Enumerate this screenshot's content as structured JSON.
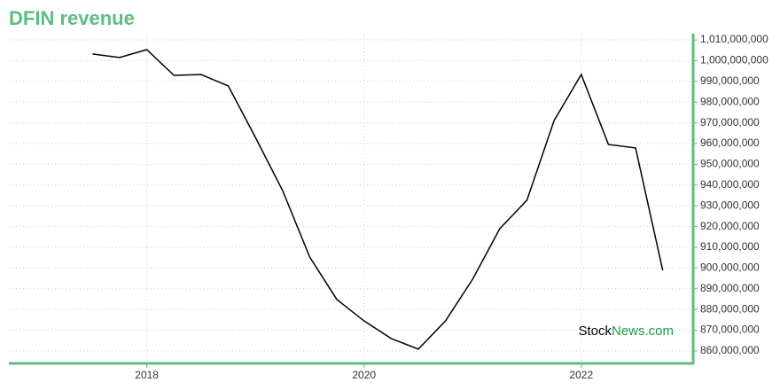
{
  "chart_data": {
    "type": "line",
    "title": "DFIN revenue",
    "x": [
      2017.5,
      2017.75,
      2018.0,
      2018.25,
      2018.5,
      2018.75,
      2019.0,
      2019.25,
      2019.5,
      2019.75,
      2020.0,
      2020.25,
      2020.5,
      2020.75,
      2021.0,
      2021.25,
      2021.5,
      2021.75,
      2022.0,
      2022.25,
      2022.5,
      2022.75
    ],
    "series": [
      {
        "color": "#000000",
        "values": [
          1003200000,
          1001500000,
          1005300000,
          992900000,
          993300000,
          987800000,
          963000000,
          937400000,
          905300000,
          884800000,
          874500000,
          866000000,
          860900000,
          874500000,
          894600000,
          919000000,
          932700000,
          971100000,
          993300000,
          959600000,
          957900000,
          898900000
        ]
      }
    ],
    "xlim": [
      2016.73,
      2023.03
    ],
    "xticks": [
      2018,
      2020,
      2022
    ],
    "ylim": [
      854000000,
      1013000000
    ],
    "yticks": [
      {
        "value": 860000000,
        "label": "860,000,000"
      },
      {
        "value": 870000000,
        "label": "870,000,000"
      },
      {
        "value": 880000000,
        "label": "880,000,000"
      },
      {
        "value": 890000000,
        "label": "890,000,000"
      },
      {
        "value": 900000000,
        "label": "900,000,000"
      },
      {
        "value": 910000000,
        "label": "910,000,000"
      },
      {
        "value": 920000000,
        "label": "920,000,000"
      },
      {
        "value": 930000000,
        "label": "930,000,000"
      },
      {
        "value": 940000000,
        "label": "940,000,000"
      },
      {
        "value": 950000000,
        "label": "950,000,000"
      },
      {
        "value": 960000000,
        "label": "960,000,000"
      },
      {
        "value": 970000000,
        "label": "970,000,000"
      },
      {
        "value": 980000000,
        "label": "980,000,000"
      },
      {
        "value": 990000000,
        "label": "990,000,000"
      },
      {
        "value": 1000000000,
        "label": "1,000,000,000"
      },
      {
        "value": 1010000000,
        "label": "1,010,000,000"
      }
    ],
    "grid": true,
    "brand": [
      "Stock",
      "News.com"
    ]
  }
}
